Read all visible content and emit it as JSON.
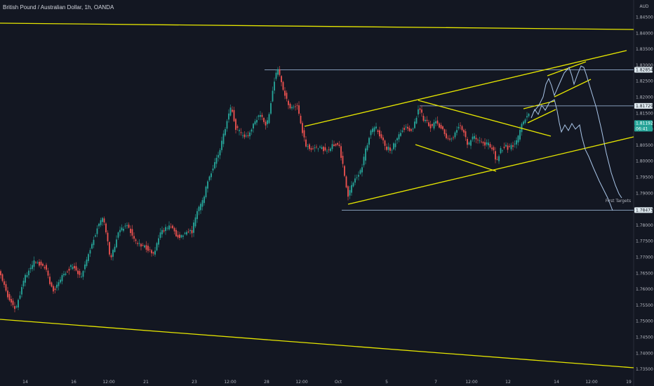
{
  "header": {
    "title": "British Pound / Australian Dollar, 1h, OANDA"
  },
  "chart_data": {
    "type": "candlestick",
    "title": "British Pound / Australian Dollar, 1h, OANDA",
    "currency_label": "AUD",
    "y_ticks": [
      "1.84500",
      "1.84000",
      "1.83500",
      "1.83000",
      "1.82500",
      "1.82000",
      "1.81500",
      "1.81000",
      "1.80500",
      "1.80000",
      "1.79500",
      "1.79000",
      "1.78500",
      "1.78000",
      "1.77500",
      "1.77000",
      "1.76500",
      "1.76000",
      "1.75500",
      "1.75000",
      "1.74500",
      "1.74000",
      "1.73500"
    ],
    "y_tick_values": [
      1.845,
      1.84,
      1.835,
      1.83,
      1.825,
      1.82,
      1.815,
      1.81,
      1.805,
      1.8,
      1.795,
      1.79,
      1.785,
      1.78,
      1.775,
      1.77,
      1.765,
      1.76,
      1.755,
      1.75,
      1.745,
      1.74,
      1.735
    ],
    "x_ticks": [
      "14",
      "16",
      "12:00",
      "21",
      "23",
      "12:00",
      "28",
      "12:00",
      "Oct",
      "5",
      "7",
      "12:00",
      "12",
      "14",
      "12:00",
      "19"
    ],
    "ylim": [
      1.7335,
      1.8485
    ],
    "price_tags": [
      {
        "label": "1.82854",
        "value": 1.82854,
        "kind": "level"
      },
      {
        "label": "1.81729",
        "value": 1.81729,
        "kind": "level"
      },
      {
        "label": "1.81192",
        "value": 1.81192,
        "kind": "last"
      },
      {
        "label": "06:41",
        "value": 1.81,
        "kind": "countdown"
      },
      {
        "label": "1.78473",
        "value": 1.78473,
        "kind": "level"
      }
    ],
    "annotations": [
      {
        "text": "First Targets"
      }
    ],
    "colors": {
      "up": "#26a69a",
      "down": "#ef5350",
      "trendline": "#e6e600",
      "projection": "#a9c5e8",
      "level": "#a9c5e8",
      "background": "#131722"
    }
  }
}
